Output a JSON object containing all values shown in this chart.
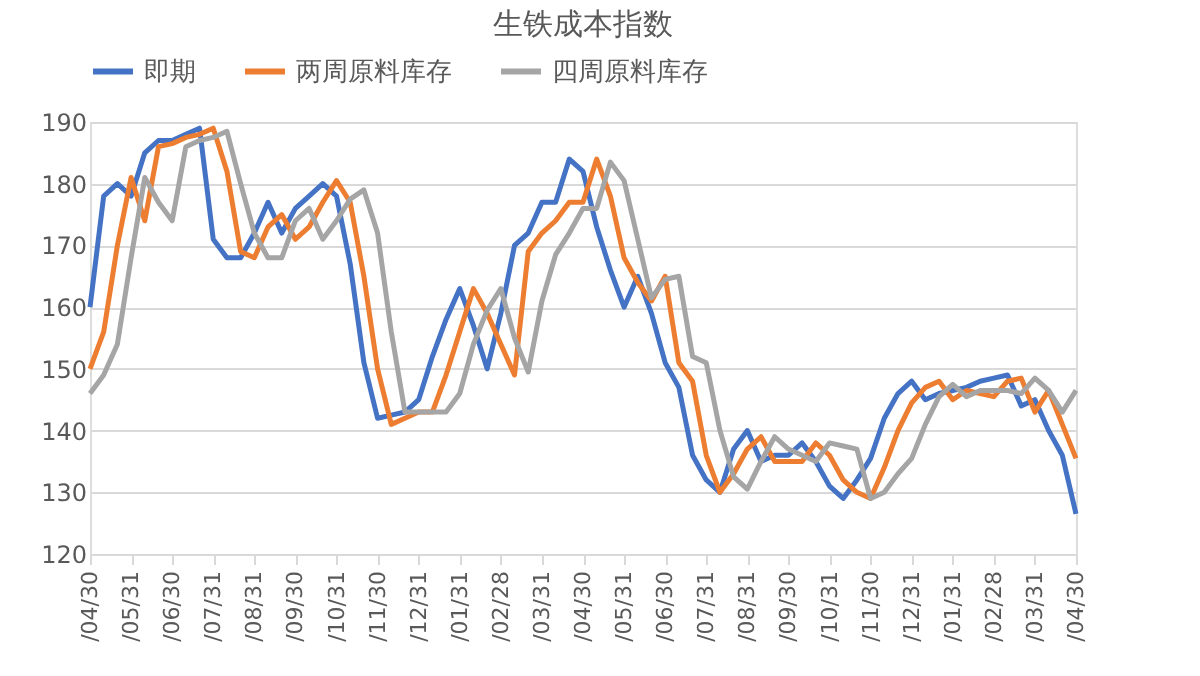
{
  "chart_data": {
    "type": "line",
    "title": "生铁成本指数",
    "legend": "top",
    "grid": "y",
    "line_style": "solid",
    "marker": "none",
    "ylim": [
      120,
      190
    ],
    "yticks": [
      120,
      130,
      140,
      150,
      160,
      170,
      180,
      190
    ],
    "categories": [
      "/04/30",
      null,
      null,
      "/05/31",
      null,
      null,
      "/06/30",
      null,
      null,
      "/07/31",
      null,
      null,
      "/08/31",
      null,
      null,
      "/09/30",
      null,
      null,
      "/10/31",
      null,
      null,
      "/11/30",
      null,
      null,
      "/12/31",
      null,
      null,
      "/01/31",
      null,
      null,
      "/02/28",
      null,
      null,
      "/03/31",
      null,
      null,
      "/04/30",
      null,
      null,
      "/05/31",
      null,
      null,
      "/06/30",
      null,
      null,
      "/07/31",
      null,
      null,
      "/08/31",
      null,
      null,
      "/09/30",
      null,
      null,
      "/10/31",
      null,
      null,
      "/11/30",
      null,
      null,
      "/12/31",
      null,
      null,
      "/01/31",
      null,
      null,
      "/02/28",
      null,
      null,
      "/03/31",
      null,
      null,
      "/04/30"
    ],
    "series": [
      {
        "name": "即期",
        "color": "#4472c4",
        "values": [
          160,
          178,
          180,
          178,
          185,
          187,
          187,
          188,
          189,
          171,
          168,
          168,
          172,
          177,
          172,
          176,
          178,
          180,
          178,
          167,
          151,
          142,
          142.5,
          143,
          145,
          152,
          158,
          163,
          157,
          150,
          159,
          170,
          172,
          177,
          177,
          184,
          182,
          173,
          166,
          160,
          165,
          159,
          151,
          147,
          136,
          132,
          130,
          137,
          140,
          135,
          136,
          136,
          138,
          135,
          131,
          129,
          132,
          135.5,
          142,
          146,
          148,
          145,
          146,
          146.5,
          147,
          148,
          148.5,
          149,
          144,
          145,
          140,
          136,
          126.5
        ]
      },
      {
        "name": "两周原料库存",
        "color": "#ed7d31",
        "values": [
          150,
          156,
          170,
          181,
          174,
          186,
          186.5,
          187.5,
          188,
          189,
          182,
          169,
          168,
          173,
          175,
          171,
          173,
          177,
          180.5,
          177,
          165,
          150,
          141,
          142,
          143,
          143,
          149,
          156,
          163,
          159,
          154,
          149,
          169,
          172,
          174,
          177,
          177,
          184,
          178,
          168,
          164,
          161,
          165,
          151,
          148,
          136,
          130,
          133,
          137,
          139,
          135,
          135,
          135,
          138,
          136,
          132,
          130,
          129,
          134,
          140,
          144.5,
          147,
          148,
          145,
          146.5,
          146,
          145.5,
          148,
          148.5,
          143,
          146.5,
          141,
          135.5
        ]
      },
      {
        "name": "四周原料库存",
        "color": "#a5a5a5",
        "values": [
          146,
          149,
          154,
          168,
          181,
          177,
          174,
          186,
          187,
          187.5,
          188.5,
          180,
          172,
          168,
          168,
          174,
          176,
          171,
          174,
          177.5,
          179,
          172,
          156,
          143,
          143,
          143,
          143,
          146,
          154,
          159.5,
          163,
          155,
          149.5,
          161,
          168.5,
          172,
          176,
          176,
          183.5,
          180.5,
          171,
          161.5,
          164.5,
          165,
          152,
          151,
          140,
          132.5,
          130.5,
          135,
          139,
          137,
          136,
          135,
          138,
          137.5,
          137,
          129,
          130,
          133,
          135.5,
          141,
          145.5,
          147.5,
          145.5,
          146.5,
          146.5,
          146.5,
          146,
          148.5,
          146.5,
          143,
          146.5
        ]
      }
    ]
  }
}
